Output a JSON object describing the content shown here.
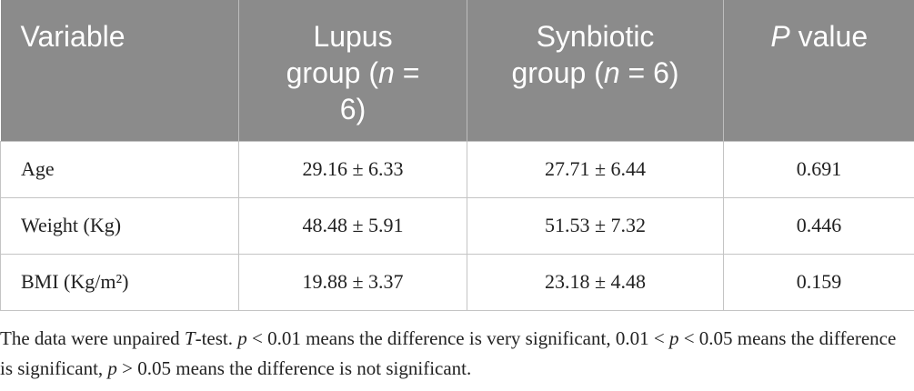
{
  "table": {
    "header": [
      [
        "Variable"
      ],
      [
        "Lupus group (",
        "n",
        " = 6)"
      ],
      [
        "Synbiotic group (",
        "n",
        " = 6)"
      ],
      [
        "",
        "P",
        " value"
      ]
    ],
    "rows": [
      [
        "Age",
        "29.16 ± 6.33",
        "27.71 ± 6.44",
        "0.691"
      ],
      [
        "Weight (Kg)",
        "48.48 ± 5.91",
        "51.53 ± 7.32",
        "0.446"
      ],
      [
        "BMI (Kg/m²)",
        "19.88 ± 3.37",
        "23.18 ± 4.48",
        "0.159"
      ]
    ]
  },
  "footnote": [
    "The data were unpaired ",
    "T",
    "-test. ",
    "p",
    " < 0.01 means the difference is very significant, 0.01 < ",
    "p",
    " < 0.05 means the difference is significant, ",
    "p",
    " > 0.05 means the difference is not significant."
  ]
}
